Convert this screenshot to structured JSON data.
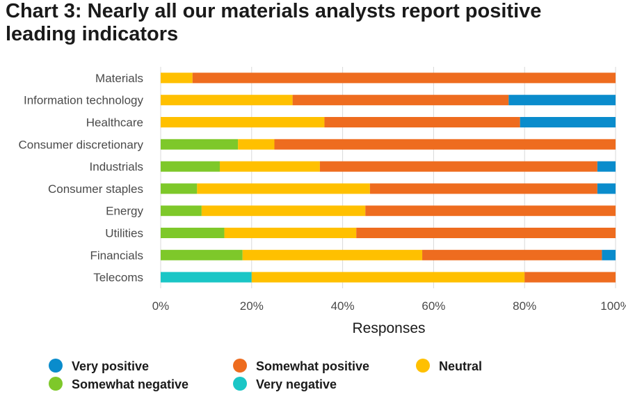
{
  "chart_data": {
    "type": "bar",
    "orientation": "horizontal",
    "stacked": true,
    "title": "Chart 3: Nearly all our materials analysts report positive leading indicators",
    "xlabel": "Responses",
    "ylabel": "",
    "xlim": [
      0,
      100
    ],
    "x_ticks": [
      "0%",
      "20%",
      "40%",
      "60%",
      "80%",
      "100%"
    ],
    "grid": true,
    "legend_position": "bottom",
    "categories": [
      "Materials",
      "Information technology",
      "Healthcare",
      "Consumer discretionary",
      "Industrials",
      "Consumer staples",
      "Energy",
      "Utilities",
      "Financials",
      "Telecoms"
    ],
    "series": [
      {
        "name": "Very negative",
        "color": "#1ac6c6",
        "values": [
          0,
          0,
          0,
          0,
          0,
          0,
          0,
          0,
          0,
          20
        ]
      },
      {
        "name": "Somewhat negative",
        "color": "#7ec82a",
        "values": [
          0,
          0,
          0,
          17,
          13,
          8,
          9,
          14,
          18,
          0
        ]
      },
      {
        "name": "Neutral",
        "color": "#ffc000",
        "values": [
          7,
          29,
          36,
          8,
          22,
          38,
          36,
          29,
          39.5,
          60
        ]
      },
      {
        "name": "Somewhat positive",
        "color": "#ee6c1f",
        "values": [
          93,
          47.5,
          43,
          75,
          61,
          50,
          55,
          57,
          39.5,
          20
        ]
      },
      {
        "name": "Very positive",
        "color": "#0a8ccc",
        "values": [
          0,
          23.5,
          21,
          0,
          4,
          4,
          0,
          0,
          3,
          0
        ]
      }
    ],
    "legend": [
      {
        "name": "Very positive",
        "color": "#0a8ccc"
      },
      {
        "name": "Somewhat positive",
        "color": "#ee6c1f"
      },
      {
        "name": "Neutral",
        "color": "#ffc000"
      },
      {
        "name": "Somewhat negative",
        "color": "#7ec82a"
      },
      {
        "name": "Very negative",
        "color": "#1ac6c6"
      }
    ]
  }
}
